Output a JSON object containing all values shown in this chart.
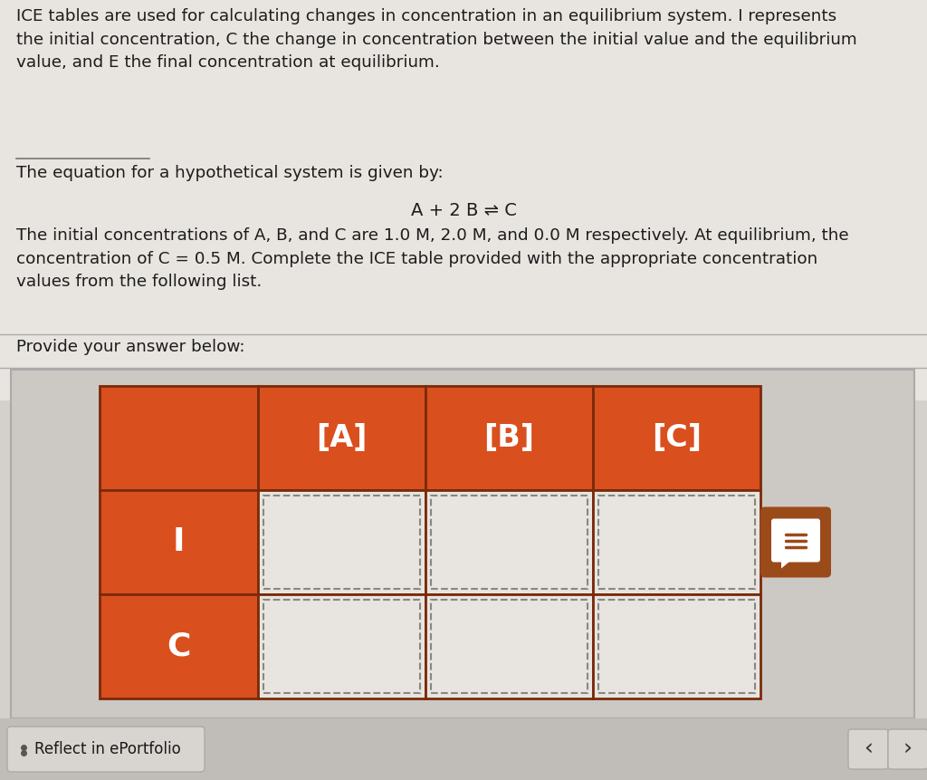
{
  "bg_color": "#d4d0cc",
  "top_bg": "#e8e5e0",
  "orange_red": "#d94f1e",
  "dark_border": "#7a2a0a",
  "paragraph1": "ICE tables are used for calculating changes in concentration in an equilibrium system. I represents\nthe initial concentration, C the change in concentration between the initial value and the equilibrium\nvalue, and E the final concentration at equilibrium.",
  "paragraph2": "The equation for a hypothetical system is given by:",
  "equation": "A + 2 B ⇌ C",
  "paragraph3": "The initial concentrations of A, B, and C are 1.0 M, 2.0 M, and 0.0 M respectively. At equilibrium, the\nconcentration of C = 0.5 M. Complete the ICE table provided with the appropriate concentration\nvalues from the following list.",
  "provide_text": "Provide your answer below:",
  "col_headers": [
    "[A]",
    "[B]",
    "[C]"
  ],
  "row_headers": [
    "I",
    "C"
  ],
  "footer_text": "Reflect in ePortfolio",
  "nav_left": "‹",
  "nav_right": "›",
  "table_bg": "#ccc9c4",
  "cell_bg": "#e8e5e0",
  "dashed_color": "#888880",
  "footer_bg": "#c0bdb8",
  "btn_bg": "#d8d5d0",
  "chat_icon_color": "#9b4a1a"
}
